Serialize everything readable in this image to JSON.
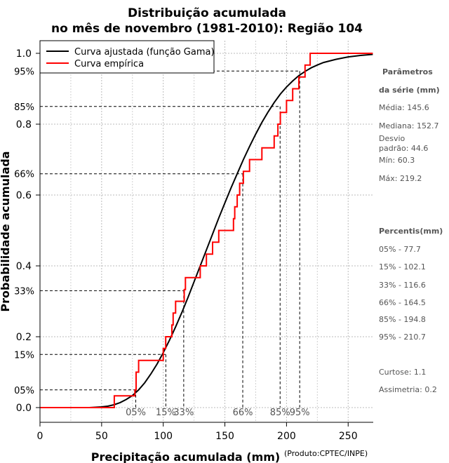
{
  "title_line1": "Distribuição acumulada",
  "title_line2": "no mês de novembro (1981-2010): Região 104",
  "credit": "(Produto:CPTEC/INPE)",
  "sidebar": {
    "params_title_1": "Parâmetros",
    "params_title_2": "da série (mm)",
    "mean": "Média: 145.6",
    "median": "Mediana: 152.7",
    "sd_1": "Desvio",
    "sd_2": "padrão: 44.6",
    "min": "Mín: 60.3",
    "max": "Máx: 219.2",
    "percentis_title": "Percentis(mm)",
    "p05": "05% - 77.7",
    "p15": "15% - 102.1",
    "p33": "33% - 116.6",
    "p66": "66% - 164.5",
    "p85": "85% - 194.8",
    "p95": "95% - 210.7",
    "curtose": "Curtose: 1.1",
    "assimetria": "Assimetria: 0.2"
  },
  "chart_data": {
    "type": "line",
    "xlabel": "Precipitação acumulada (mm)",
    "ylabel": "Probabilidade acumulada",
    "xlim": [
      0,
      270
    ],
    "ylim": [
      0,
      1
    ],
    "xticks": [
      0,
      50,
      100,
      150,
      200,
      250
    ],
    "yticks": [
      0.0,
      0.2,
      0.4,
      0.6,
      0.8,
      1.0
    ],
    "yticks_labels": [
      "0.0",
      "0.2",
      "0.4",
      "0.6",
      "0.8",
      "1.0"
    ],
    "grid": true,
    "legend_position": "top-left",
    "percentile_lines": [
      {
        "label": "05%",
        "p": 0.05,
        "x": 77.7
      },
      {
        "label": "15%",
        "p": 0.15,
        "x": 102.1
      },
      {
        "label": "33%",
        "p": 0.33,
        "x": 116.6
      },
      {
        "label": "66%",
        "p": 0.66,
        "x": 164.5
      },
      {
        "label": "85%",
        "p": 0.85,
        "x": 194.8
      },
      {
        "label": "95%",
        "p": 0.95,
        "x": 210.7
      }
    ],
    "series": [
      {
        "name": "Curva ajustada (função Gama)",
        "color": "#000000",
        "x": [
          40,
          45,
          50,
          55,
          60,
          65,
          70,
          75,
          80,
          85,
          90,
          95,
          100,
          105,
          110,
          115,
          120,
          125,
          130,
          135,
          140,
          145,
          150,
          155,
          160,
          165,
          170,
          175,
          180,
          185,
          190,
          195,
          200,
          205,
          210,
          215,
          220,
          225,
          230,
          240,
          250,
          260,
          270
        ],
        "y": [
          0.0,
          0.001,
          0.002,
          0.004,
          0.008,
          0.014,
          0.023,
          0.034,
          0.05,
          0.07,
          0.095,
          0.123,
          0.155,
          0.19,
          0.228,
          0.268,
          0.31,
          0.355,
          0.4,
          0.445,
          0.49,
          0.535,
          0.578,
          0.62,
          0.66,
          0.7,
          0.737,
          0.772,
          0.805,
          0.834,
          0.861,
          0.885,
          0.905,
          0.922,
          0.937,
          0.949,
          0.959,
          0.967,
          0.974,
          0.983,
          0.99,
          0.994,
          0.997
        ]
      },
      {
        "name": "Curva empírica",
        "color": "#ff0000",
        "step_x": [
          0,
          60.3,
          77,
          78,
          80,
          100,
          102,
          107,
          108,
          110,
          117,
          118,
          130,
          135,
          140,
          145,
          150,
          157,
          158,
          160,
          162,
          165,
          170,
          180,
          190,
          193,
          195,
          200,
          205,
          210,
          215,
          219.2,
          270
        ],
        "step_y": [
          0.0,
          0.033,
          0.05,
          0.1,
          0.133,
          0.167,
          0.2,
          0.233,
          0.267,
          0.3,
          0.333,
          0.367,
          0.4,
          0.433,
          0.467,
          0.5,
          0.5,
          0.533,
          0.567,
          0.6,
          0.633,
          0.667,
          0.7,
          0.733,
          0.767,
          0.8,
          0.833,
          0.867,
          0.9,
          0.933,
          0.967,
          1.0,
          1.0
        ]
      }
    ]
  }
}
